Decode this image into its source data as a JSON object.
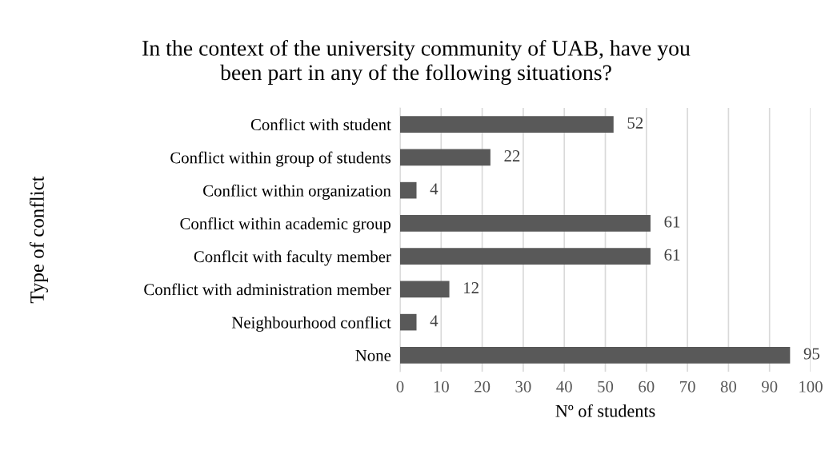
{
  "chart_data": {
    "type": "bar",
    "orientation": "horizontal",
    "title": "In the context of the university community of UAB, have you\nbeen part in any of the following situations?",
    "xlabel": "Nº of students",
    "ylabel": "Type of conflict",
    "categories": [
      "Conflict with student",
      "Conflict within group of students",
      "Conflict within organization",
      "Conflict within academic group",
      "Conflcit with faculty member",
      "Conflict with administration member",
      "Neighbourhood conflict",
      "None"
    ],
    "values": [
      52,
      22,
      4,
      61,
      61,
      12,
      4,
      95
    ],
    "color": "#595959",
    "xlim": [
      0,
      100
    ],
    "xticks": [
      0,
      10,
      20,
      30,
      40,
      50,
      60,
      70,
      80,
      90,
      100
    ],
    "grid": "x",
    "data_labels": true,
    "legend": false
  }
}
